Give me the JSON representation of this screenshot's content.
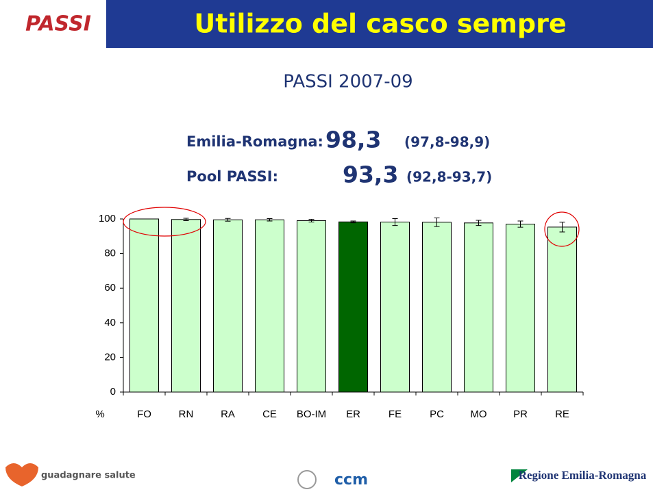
{
  "slide": {
    "logo": "PASSI",
    "title": "Utilizzo del casco sempre",
    "subtitle": "PASSI 2007-09",
    "stats": [
      {
        "label": "Emilia-Romagna:",
        "value": "98,3",
        "ci": "(97,8-98,9)"
      },
      {
        "label": "Pool PASSI:",
        "value": "93,3",
        "ci": "(92,8-93,7)"
      }
    ]
  },
  "chart_data": {
    "type": "bar",
    "categories": [
      "FO",
      "RN",
      "RA",
      "CE",
      "BO-IM",
      "ER",
      "FE",
      "PC",
      "MO",
      "PR",
      "RE"
    ],
    "values": [
      100,
      99.7,
      99.5,
      99.5,
      99.0,
      98.3,
      98.2,
      98.1,
      97.7,
      97.0,
      95.3
    ],
    "errors": [
      0,
      0.7,
      0.8,
      0.7,
      0.8,
      0.5,
      2.0,
      2.5,
      1.5,
      1.8,
      2.8
    ],
    "colors": [
      "#ccffcc",
      "#ccffcc",
      "#ccffcc",
      "#ccffcc",
      "#ccffcc",
      "#006600",
      "#ccffcc",
      "#ccffcc",
      "#ccffcc",
      "#ccffcc",
      "#ccffcc"
    ],
    "ylabel": "%",
    "ylim": [
      0,
      100
    ],
    "yticks": [
      0,
      20,
      40,
      60,
      80,
      100
    ]
  },
  "footer": {
    "left": "guadagnare salute",
    "center": "ccm",
    "right": "Regione Emilia-Romagna"
  }
}
